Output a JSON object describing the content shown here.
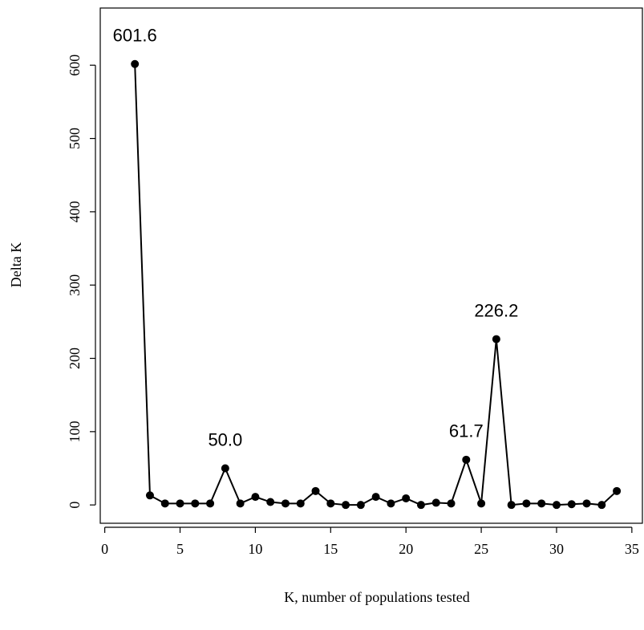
{
  "chart_data": {
    "type": "line",
    "x_label": "K, number of populations tested",
    "y_label": "Delta K",
    "x": [
      2,
      3,
      4,
      5,
      6,
      7,
      8,
      9,
      10,
      11,
      12,
      13,
      14,
      15,
      16,
      17,
      18,
      19,
      20,
      21,
      22,
      23,
      24,
      25,
      26,
      27,
      28,
      29,
      30,
      31,
      32,
      33,
      34
    ],
    "values": [
      601.6,
      13,
      2,
      2,
      2,
      2,
      50.0,
      2,
      11,
      4,
      2,
      2,
      19,
      2,
      0,
      0,
      11,
      2,
      9,
      0,
      3,
      2,
      61.7,
      2,
      226.2,
      0,
      2,
      2,
      0,
      1,
      2,
      0,
      19
    ],
    "value_labels": [
      "601.6",
      null,
      null,
      null,
      null,
      null,
      "50.0",
      null,
      null,
      null,
      null,
      null,
      null,
      null,
      null,
      null,
      null,
      null,
      null,
      null,
      null,
      null,
      "61.7",
      null,
      "226.2",
      null,
      null,
      null,
      null,
      null,
      null,
      null,
      null
    ],
    "color": "#000000",
    "xlim": [
      -0.3,
      35.7
    ],
    "xticks": [
      0,
      5,
      10,
      15,
      20,
      25,
      30,
      35
    ],
    "ylim": [
      -25,
      678
    ],
    "yticks": [
      0,
      100,
      200,
      300,
      400,
      500,
      600
    ]
  }
}
